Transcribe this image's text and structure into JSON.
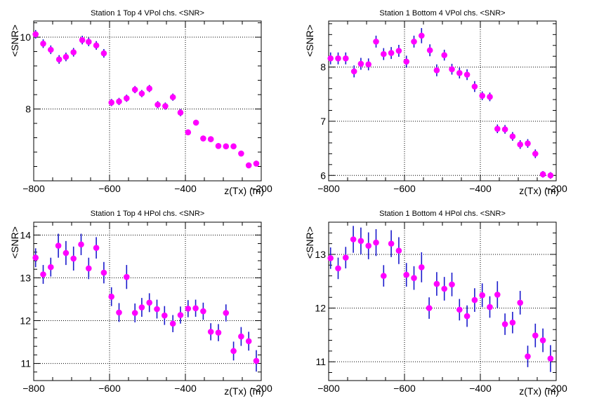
{
  "chart_data": [
    {
      "type": "scatter",
      "title": "Station 1 Top 4 VPol chs. <SNR>",
      "xlabel": "z(Tx) (m)",
      "ylabel": "<SNR>",
      "xlim": [
        -800,
        -200
      ],
      "ylim": [
        6.0,
        10.45
      ],
      "x_ticks": [
        -800,
        -600,
        -400,
        -200
      ],
      "x_tick_labels": [
        "−800",
        "−600",
        "−400",
        "−200"
      ],
      "y_ticks": [
        8,
        10
      ],
      "y_tick_labels": [
        "8",
        "10"
      ],
      "grid_x": [
        -600,
        -400
      ],
      "grid_y": [
        8,
        10
      ],
      "series": [
        {
          "name": "SNR",
          "marker_color": "#ff00ff",
          "error_color": "#1a1acc",
          "x": [
            -795,
            -775,
            -755,
            -733,
            -715,
            -695,
            -672,
            -655,
            -635,
            -615,
            -595,
            -575,
            -555,
            -533,
            -515,
            -495,
            -473,
            -453,
            -433,
            -413,
            -393,
            -372,
            -353,
            -333,
            -313,
            -293,
            -273,
            -253,
            -233,
            -213
          ],
          "y": [
            10.08,
            9.82,
            9.65,
            9.38,
            9.45,
            9.58,
            9.92,
            9.87,
            9.77,
            9.55,
            8.18,
            8.21,
            8.3,
            8.54,
            8.43,
            8.57,
            8.12,
            8.08,
            8.33,
            7.9,
            7.35,
            7.62,
            7.18,
            7.16,
            6.97,
            6.96,
            6.96,
            6.76,
            6.43,
            6.48
          ],
          "err": [
            0.12,
            0.12,
            0.12,
            0.12,
            0.12,
            0.12,
            0.12,
            0.12,
            0.12,
            0.12,
            0.1,
            0.1,
            0.1,
            0.1,
            0.1,
            0.1,
            0.1,
            0.1,
            0.1,
            0.1,
            0.08,
            0.08,
            0.08,
            0.08,
            0.08,
            0.08,
            0.08,
            0.08,
            0.08,
            0.08
          ]
        }
      ]
    },
    {
      "type": "scatter",
      "title": "Station 1 Bottom 4 VPol chs. <SNR>",
      "xlabel": "z(Tx) (m)",
      "ylabel": "<SNR>",
      "xlim": [
        -800,
        -200
      ],
      "ylim": [
        5.9,
        8.85
      ],
      "x_ticks": [
        -800,
        -600,
        -400,
        -200
      ],
      "x_tick_labels": [
        "−800",
        "−600",
        "−400",
        "−200"
      ],
      "y_ticks": [
        6,
        7,
        8
      ],
      "y_tick_labels": [
        "6",
        "7",
        "8"
      ],
      "grid_x": [
        -600,
        -400
      ],
      "grid_y": [
        6,
        7,
        8
      ],
      "series": [
        {
          "name": "SNR",
          "marker_color": "#ff00ff",
          "error_color": "#1a1acc",
          "x": [
            -795,
            -775,
            -755,
            -733,
            -715,
            -695,
            -675,
            -655,
            -635,
            -615,
            -595,
            -575,
            -555,
            -533,
            -515,
            -495,
            -475,
            -455,
            -435,
            -415,
            -395,
            -375,
            -355,
            -335,
            -315,
            -295,
            -275,
            -255,
            -235,
            -215
          ],
          "y": [
            8.16,
            8.16,
            8.16,
            7.92,
            8.06,
            8.05,
            8.47,
            8.24,
            8.26,
            8.3,
            8.1,
            8.47,
            8.58,
            8.31,
            7.94,
            8.22,
            7.96,
            7.89,
            7.86,
            7.64,
            7.47,
            7.45,
            6.86,
            6.85,
            6.72,
            6.57,
            6.59,
            6.4,
            6.02,
            6.0
          ],
          "err": [
            0.11,
            0.11,
            0.11,
            0.11,
            0.11,
            0.11,
            0.11,
            0.11,
            0.11,
            0.11,
            0.11,
            0.11,
            0.14,
            0.11,
            0.11,
            0.1,
            0.1,
            0.1,
            0.1,
            0.1,
            0.08,
            0.08,
            0.08,
            0.08,
            0.08,
            0.08,
            0.08,
            0.08,
            0.06,
            0.06
          ]
        }
      ]
    },
    {
      "type": "scatter",
      "title": "Station 1 Top 4 HPol chs. <SNR>",
      "xlabel": "z(Tx) (m)",
      "ylabel": "<SNR>",
      "xlim": [
        -800,
        -200
      ],
      "ylim": [
        10.6,
        14.3
      ],
      "x_ticks": [
        -800,
        -600,
        -400,
        -200
      ],
      "x_tick_labels": [
        "−800",
        "−600",
        "−400",
        "−200"
      ],
      "y_ticks": [
        11,
        12,
        13,
        14
      ],
      "y_tick_labels": [
        "11",
        "12",
        "13",
        "14"
      ],
      "grid_x": [
        -600,
        -400
      ],
      "grid_y": [
        11,
        12,
        13,
        14
      ],
      "series": [
        {
          "name": "SNR",
          "marker_color": "#ff00ff",
          "error_color": "#1a1acc",
          "x": [
            -795,
            -775,
            -755,
            -735,
            -715,
            -695,
            -675,
            -655,
            -635,
            -615,
            -595,
            -575,
            -555,
            -533,
            -515,
            -495,
            -475,
            -455,
            -433,
            -413,
            -393,
            -373,
            -353,
            -333,
            -313,
            -293,
            -273,
            -253,
            -233,
            -213
          ],
          "y": [
            13.47,
            13.08,
            13.25,
            13.75,
            13.58,
            13.45,
            13.78,
            13.22,
            13.7,
            13.12,
            12.56,
            12.19,
            13.02,
            12.18,
            12.31,
            12.42,
            12.27,
            12.12,
            11.93,
            12.13,
            12.28,
            12.29,
            12.22,
            11.74,
            11.72,
            12.18,
            11.29,
            11.63,
            11.52,
            11.06
          ],
          "err": [
            0.22,
            0.22,
            0.22,
            0.28,
            0.28,
            0.28,
            0.25,
            0.25,
            0.25,
            0.25,
            0.22,
            0.22,
            0.28,
            0.22,
            0.22,
            0.22,
            0.22,
            0.22,
            0.2,
            0.2,
            0.2,
            0.2,
            0.2,
            0.2,
            0.2,
            0.2,
            0.22,
            0.22,
            0.22,
            0.25
          ]
        }
      ]
    },
    {
      "type": "scatter",
      "title": "Station 1 Bottom 4 HPol chs. <SNR>",
      "xlabel": "z(Tx) (m)",
      "ylabel": "<SNR>",
      "xlim": [
        -800,
        -200
      ],
      "ylim": [
        10.65,
        13.6
      ],
      "x_ticks": [
        -800,
        -600,
        -400,
        -200
      ],
      "x_tick_labels": [
        "−800",
        "−600",
        "−400",
        "−200"
      ],
      "y_ticks": [
        11,
        12,
        13
      ],
      "y_tick_labels": [
        "11",
        "12",
        "13"
      ],
      "grid_x": [
        -600,
        -400
      ],
      "grid_y": [
        11,
        12,
        13
      ],
      "series": [
        {
          "name": "SNR",
          "marker_color": "#ff00ff",
          "error_color": "#1a1acc",
          "x": [
            -795,
            -775,
            -755,
            -735,
            -715,
            -695,
            -675,
            -655,
            -635,
            -615,
            -595,
            -575,
            -555,
            -535,
            -515,
            -495,
            -475,
            -455,
            -435,
            -415,
            -395,
            -375,
            -355,
            -335,
            -315,
            -295,
            -275,
            -255,
            -235,
            -215
          ],
          "y": [
            12.93,
            12.74,
            12.94,
            13.28,
            13.25,
            13.16,
            13.22,
            12.6,
            13.2,
            13.07,
            12.62,
            12.56,
            12.76,
            12.0,
            12.45,
            12.36,
            12.44,
            11.97,
            11.85,
            12.15,
            12.24,
            12.02,
            12.25,
            11.7,
            11.73,
            12.1,
            11.1,
            11.49,
            11.4,
            11.06
          ],
          "err": [
            0.2,
            0.2,
            0.2,
            0.25,
            0.25,
            0.25,
            0.25,
            0.2,
            0.25,
            0.25,
            0.22,
            0.22,
            0.28,
            0.2,
            0.22,
            0.22,
            0.22,
            0.2,
            0.2,
            0.22,
            0.22,
            0.2,
            0.25,
            0.2,
            0.2,
            0.22,
            0.2,
            0.22,
            0.22,
            0.25
          ]
        }
      ]
    }
  ]
}
